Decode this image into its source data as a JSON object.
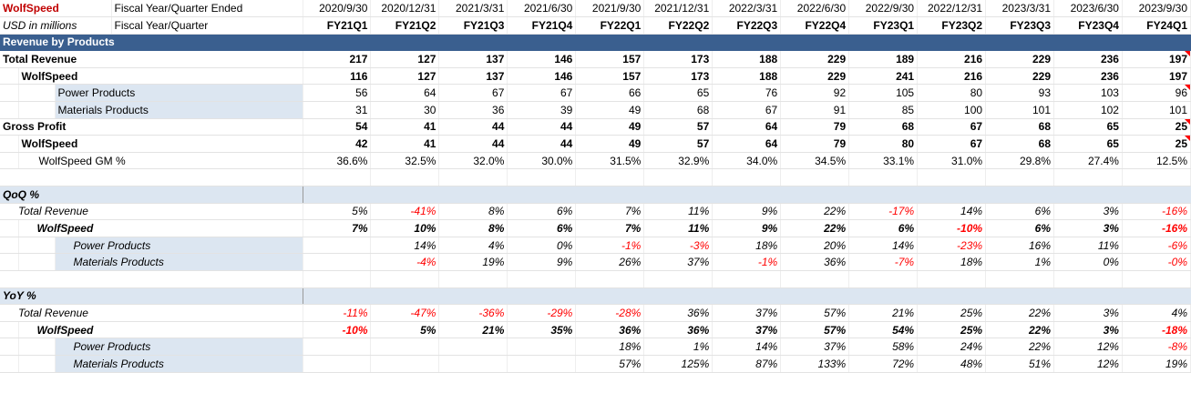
{
  "header": {
    "company": "WolfSpeed",
    "units": "USD in millions",
    "row1_label": "Fiscal Year/Quarter Ended",
    "row2_label": "Fiscal Year/Quarter",
    "dates": [
      "2020/9/30",
      "2020/12/31",
      "2021/3/31",
      "2021/6/30",
      "2021/9/30",
      "2021/12/31",
      "2022/3/31",
      "2022/6/30",
      "2022/9/30",
      "2022/12/31",
      "2023/3/31",
      "2023/6/30",
      "2023/9/30"
    ],
    "quarters": [
      "FY21Q1",
      "FY21Q2",
      "FY21Q3",
      "FY21Q4",
      "FY22Q1",
      "FY22Q2",
      "FY22Q3",
      "FY22Q4",
      "FY23Q1",
      "FY23Q2",
      "FY23Q3",
      "FY23Q4",
      "FY24Q1"
    ]
  },
  "sections": {
    "revenue": "Revenue by Products",
    "qoq": "QoQ %",
    "yoy": "YoY %"
  },
  "revenue_rows": [
    {
      "label": "Total Revenue",
      "values": [
        "217",
        "127",
        "137",
        "146",
        "157",
        "173",
        "188",
        "229",
        "189",
        "216",
        "229",
        "236",
        "197"
      ]
    },
    {
      "label": "WolfSpeed",
      "values": [
        "116",
        "127",
        "137",
        "146",
        "157",
        "173",
        "188",
        "229",
        "241",
        "216",
        "229",
        "236",
        "197"
      ]
    },
    {
      "label": "Power Products",
      "values": [
        "56",
        "64",
        "67",
        "67",
        "66",
        "65",
        "76",
        "92",
        "105",
        "80",
        "93",
        "103",
        "96"
      ]
    },
    {
      "label": "Materials Products",
      "values": [
        "31",
        "30",
        "36",
        "39",
        "49",
        "68",
        "67",
        "91",
        "85",
        "100",
        "101",
        "102",
        "101"
      ]
    },
    {
      "label": "Gross Profit",
      "values": [
        "54",
        "41",
        "44",
        "44",
        "49",
        "57",
        "64",
        "79",
        "68",
        "67",
        "68",
        "65",
        "25"
      ]
    },
    {
      "label": "WolfSpeed",
      "values": [
        "42",
        "41",
        "44",
        "44",
        "49",
        "57",
        "64",
        "79",
        "80",
        "67",
        "68",
        "65",
        "25"
      ]
    },
    {
      "label": "WolfSpeed GM %",
      "values": [
        "36.6%",
        "32.5%",
        "32.0%",
        "30.0%",
        "31.5%",
        "32.9%",
        "34.0%",
        "34.5%",
        "33.1%",
        "31.0%",
        "29.8%",
        "27.4%",
        "12.5%"
      ]
    }
  ],
  "qoq_rows": [
    {
      "label": "Total Revenue",
      "values": [
        "5%",
        "-41%",
        "8%",
        "6%",
        "7%",
        "11%",
        "9%",
        "22%",
        "-17%",
        "14%",
        "6%",
        "3%",
        "-16%"
      ]
    },
    {
      "label": "WolfSpeed",
      "values": [
        "7%",
        "10%",
        "8%",
        "6%",
        "7%",
        "11%",
        "9%",
        "22%",
        "6%",
        "-10%",
        "6%",
        "3%",
        "-16%"
      ]
    },
    {
      "label": "Power Products",
      "values": [
        "",
        "14%",
        "4%",
        "0%",
        "-1%",
        "-3%",
        "18%",
        "20%",
        "14%",
        "-23%",
        "16%",
        "11%",
        "-6%"
      ]
    },
    {
      "label": "Materials Products",
      "values": [
        "",
        "-4%",
        "19%",
        "9%",
        "26%",
        "37%",
        "-1%",
        "36%",
        "-7%",
        "18%",
        "1%",
        "0%",
        "-0%"
      ]
    }
  ],
  "yoy_rows": [
    {
      "label": "Total Revenue",
      "values": [
        "-11%",
        "-47%",
        "-36%",
        "-29%",
        "-28%",
        "36%",
        "37%",
        "57%",
        "21%",
        "25%",
        "22%",
        "3%",
        "4%"
      ]
    },
    {
      "label": "WolfSpeed",
      "values": [
        "-10%",
        "5%",
        "21%",
        "35%",
        "36%",
        "36%",
        "37%",
        "57%",
        "54%",
        "25%",
        "22%",
        "3%",
        "-18%"
      ]
    },
    {
      "label": "Power Products",
      "values": [
        "",
        "",
        "",
        "",
        "18%",
        "1%",
        "14%",
        "37%",
        "58%",
        "24%",
        "22%",
        "12%",
        "-8%"
      ]
    },
    {
      "label": "Materials Products",
      "values": [
        "",
        "",
        "",
        "",
        "57%",
        "125%",
        "87%",
        "133%",
        "72%",
        "48%",
        "51%",
        "12%",
        "19%"
      ]
    }
  ],
  "colors": {
    "section_bg": "#3a5f8f",
    "subsection_bg": "#dce6f1",
    "brand": "#c00000",
    "negative": "#ff0000"
  }
}
